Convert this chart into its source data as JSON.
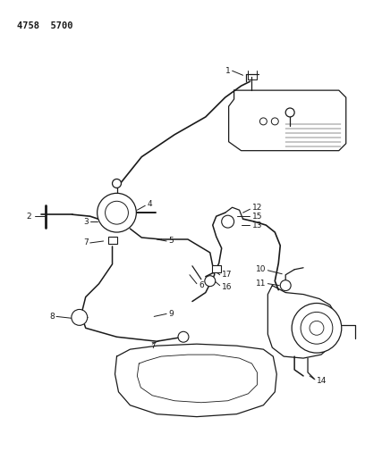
{
  "title_code": "4758  5700",
  "background_color": "#ffffff",
  "line_color": "#1a1a1a",
  "figsize": [
    4.08,
    5.33
  ],
  "dpi": 100
}
